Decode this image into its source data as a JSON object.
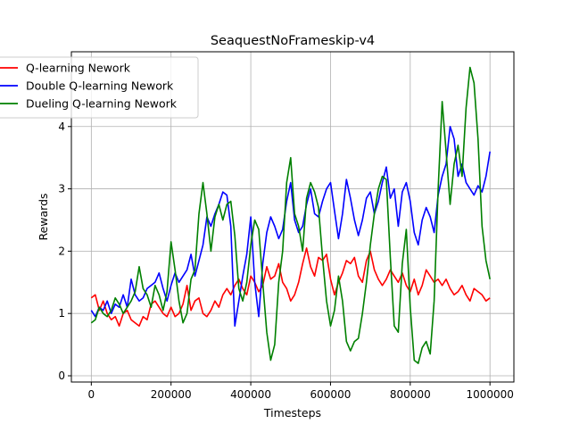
{
  "chart_data": {
    "type": "line",
    "title": "SeaquestNoFrameskip-v4",
    "xlabel": "Timesteps",
    "ylabel": "Rewards",
    "xlim": [
      -50000,
      1060000
    ],
    "ylim": [
      -0.1,
      5.2
    ],
    "xticks": [
      0,
      200000,
      400000,
      600000,
      800000,
      1000000
    ],
    "yticks": [
      0,
      1,
      2,
      3,
      4
    ],
    "grid": true,
    "legend_position": "top-left",
    "series": [
      {
        "name": "Q-learning Nework",
        "color": "#ff0000",
        "x": [
          0,
          10000,
          20000,
          30000,
          40000,
          50000,
          60000,
          70000,
          80000,
          90000,
          100000,
          110000,
          120000,
          130000,
          140000,
          150000,
          160000,
          170000,
          180000,
          190000,
          200000,
          210000,
          220000,
          230000,
          240000,
          250000,
          260000,
          270000,
          280000,
          290000,
          300000,
          310000,
          320000,
          330000,
          340000,
          350000,
          360000,
          370000,
          380000,
          390000,
          400000,
          410000,
          420000,
          430000,
          440000,
          450000,
          460000,
          470000,
          480000,
          490000,
          500000,
          510000,
          520000,
          530000,
          540000,
          550000,
          560000,
          570000,
          580000,
          590000,
          600000,
          610000,
          620000,
          630000,
          640000,
          650000,
          660000,
          670000,
          680000,
          690000,
          700000,
          710000,
          720000,
          730000,
          740000,
          750000,
          760000,
          770000,
          780000,
          790000,
          800000,
          810000,
          820000,
          830000,
          840000,
          850000,
          860000,
          870000,
          880000,
          890000,
          900000,
          910000,
          920000,
          930000,
          940000,
          950000,
          960000,
          970000,
          980000,
          990000,
          1000000
        ],
        "y": [
          1.25,
          1.3,
          1.05,
          1.2,
          1.0,
          0.9,
          0.95,
          0.8,
          1.0,
          1.05,
          0.9,
          0.85,
          0.8,
          0.95,
          0.9,
          1.15,
          1.2,
          1.1,
          1.0,
          0.95,
          1.1,
          0.95,
          1.0,
          1.15,
          1.45,
          1.05,
          1.2,
          1.25,
          1.0,
          0.95,
          1.05,
          1.2,
          1.1,
          1.3,
          1.4,
          1.3,
          1.45,
          1.55,
          1.4,
          1.3,
          1.6,
          1.5,
          1.35,
          1.45,
          1.75,
          1.55,
          1.6,
          1.8,
          1.5,
          1.4,
          1.2,
          1.3,
          1.5,
          1.8,
          2.05,
          1.75,
          1.6,
          1.9,
          1.85,
          1.95,
          1.55,
          1.3,
          1.5,
          1.65,
          1.85,
          1.8,
          1.9,
          1.6,
          1.5,
          1.85,
          2.0,
          1.7,
          1.55,
          1.45,
          1.55,
          1.7,
          1.6,
          1.5,
          1.65,
          1.45,
          1.35,
          1.55,
          1.3,
          1.45,
          1.7,
          1.6,
          1.5,
          1.55,
          1.45,
          1.55,
          1.4,
          1.3,
          1.35,
          1.45,
          1.3,
          1.2,
          1.4,
          1.35,
          1.3,
          1.2,
          1.25
        ]
      },
      {
        "name": "Double Q-learning Nework",
        "color": "#0000ff",
        "x": [
          0,
          10000,
          20000,
          30000,
          40000,
          50000,
          60000,
          70000,
          80000,
          90000,
          100000,
          110000,
          120000,
          130000,
          140000,
          150000,
          160000,
          170000,
          180000,
          190000,
          200000,
          210000,
          220000,
          230000,
          240000,
          250000,
          260000,
          270000,
          280000,
          290000,
          300000,
          310000,
          320000,
          330000,
          340000,
          350000,
          360000,
          370000,
          380000,
          390000,
          400000,
          410000,
          420000,
          430000,
          440000,
          450000,
          460000,
          470000,
          480000,
          490000,
          500000,
          510000,
          520000,
          530000,
          540000,
          550000,
          560000,
          570000,
          580000,
          590000,
          600000,
          610000,
          620000,
          630000,
          640000,
          650000,
          660000,
          670000,
          680000,
          690000,
          700000,
          710000,
          720000,
          730000,
          740000,
          750000,
          760000,
          770000,
          780000,
          790000,
          800000,
          810000,
          820000,
          830000,
          840000,
          850000,
          860000,
          870000,
          880000,
          890000,
          900000,
          910000,
          920000,
          930000,
          940000,
          950000,
          960000,
          970000,
          980000,
          990000,
          1000000
        ],
        "y": [
          1.05,
          0.95,
          1.1,
          1.05,
          1.2,
          1.0,
          1.15,
          1.1,
          1.3,
          1.1,
          1.55,
          1.3,
          1.2,
          1.25,
          1.4,
          1.45,
          1.5,
          1.65,
          1.4,
          1.2,
          1.45,
          1.65,
          1.5,
          1.6,
          1.7,
          1.95,
          1.6,
          1.85,
          2.1,
          2.55,
          2.4,
          2.6,
          2.75,
          2.95,
          2.9,
          2.4,
          0.8,
          1.2,
          1.6,
          1.95,
          2.55,
          1.5,
          0.95,
          1.8,
          2.3,
          2.55,
          2.4,
          2.2,
          2.35,
          2.8,
          3.1,
          2.5,
          2.3,
          2.4,
          2.75,
          3.0,
          2.6,
          2.55,
          2.8,
          3.0,
          3.1,
          2.65,
          2.2,
          2.6,
          3.15,
          2.85,
          2.5,
          2.25,
          2.5,
          2.85,
          2.95,
          2.6,
          2.8,
          3.1,
          3.35,
          2.85,
          3.0,
          2.4,
          2.95,
          3.1,
          2.8,
          2.3,
          2.1,
          2.5,
          2.7,
          2.55,
          2.3,
          2.9,
          3.2,
          3.4,
          4.0,
          3.8,
          3.2,
          3.4,
          3.1,
          3.0,
          2.9,
          3.05,
          2.95,
          3.2,
          3.6
        ]
      },
      {
        "name": "Dueling Q-learning Nework",
        "color": "#008000",
        "x": [
          0,
          10000,
          20000,
          30000,
          40000,
          50000,
          60000,
          70000,
          80000,
          90000,
          100000,
          110000,
          120000,
          130000,
          140000,
          150000,
          160000,
          170000,
          180000,
          190000,
          200000,
          210000,
          220000,
          230000,
          240000,
          250000,
          260000,
          270000,
          280000,
          290000,
          300000,
          310000,
          320000,
          330000,
          340000,
          350000,
          360000,
          370000,
          380000,
          390000,
          400000,
          410000,
          420000,
          430000,
          440000,
          450000,
          460000,
          470000,
          480000,
          490000,
          500000,
          510000,
          520000,
          530000,
          540000,
          550000,
          560000,
          570000,
          580000,
          590000,
          600000,
          610000,
          620000,
          630000,
          640000,
          650000,
          660000,
          670000,
          680000,
          690000,
          700000,
          710000,
          720000,
          730000,
          740000,
          750000,
          760000,
          770000,
          780000,
          790000,
          800000,
          810000,
          820000,
          830000,
          840000,
          850000,
          860000,
          870000,
          880000,
          890000,
          900000,
          910000,
          920000,
          930000,
          940000,
          950000,
          960000,
          970000,
          980000,
          990000,
          1000000
        ],
        "y": [
          0.85,
          0.9,
          1.1,
          1.0,
          0.95,
          1.05,
          1.25,
          1.15,
          1.0,
          1.1,
          1.2,
          1.35,
          1.75,
          1.4,
          1.3,
          1.1,
          1.45,
          1.3,
          1.05,
          1.35,
          2.15,
          1.7,
          1.2,
          0.85,
          1.0,
          1.55,
          1.7,
          2.6,
          3.1,
          2.6,
          2.0,
          2.55,
          2.75,
          2.5,
          2.75,
          2.8,
          2.25,
          1.4,
          1.2,
          1.5,
          2.1,
          2.5,
          2.35,
          1.5,
          0.7,
          0.25,
          0.5,
          1.5,
          2.0,
          3.1,
          3.5,
          2.6,
          2.4,
          2.0,
          2.85,
          3.1,
          2.95,
          2.7,
          1.9,
          1.2,
          0.8,
          1.05,
          1.6,
          1.2,
          0.55,
          0.4,
          0.55,
          0.6,
          1.0,
          1.5,
          2.1,
          2.6,
          3.0,
          3.2,
          3.15,
          1.9,
          0.8,
          0.7,
          1.8,
          2.35,
          1.1,
          0.25,
          0.2,
          0.45,
          0.55,
          0.35,
          1.2,
          3.0,
          4.4,
          3.6,
          2.75,
          3.4,
          3.7,
          3.2,
          4.3,
          4.95,
          4.7,
          3.8,
          2.4,
          1.85,
          1.55
        ]
      }
    ]
  }
}
